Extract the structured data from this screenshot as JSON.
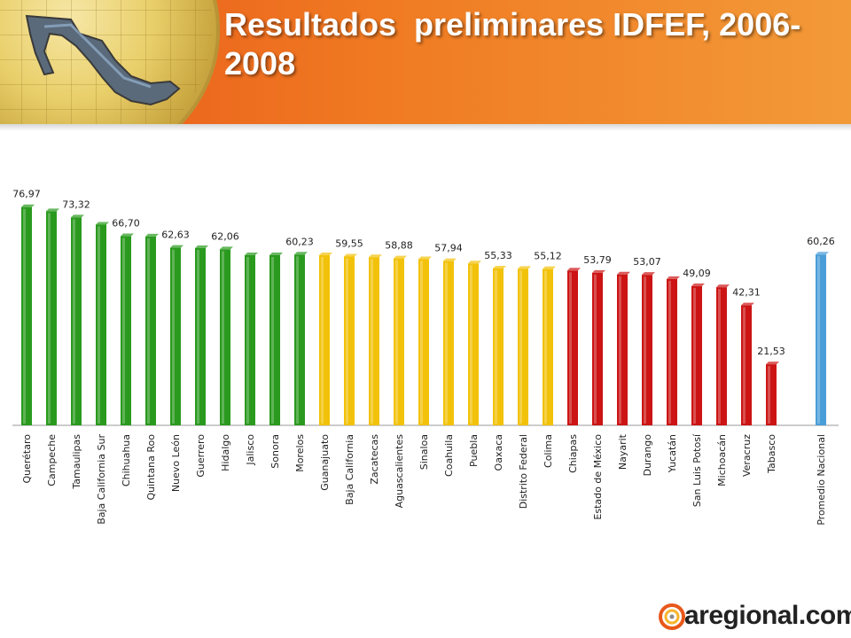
{
  "header": {
    "title": "Resultados  preliminares IDFEF, 2006-2008"
  },
  "brand": {
    "name": "aregional.com",
    "colors": [
      "#e8581a",
      "#f7b42c",
      "#8a8a8a"
    ]
  },
  "chart_data": {
    "type": "bar",
    "title": "",
    "xlabel": "",
    "ylabel": "",
    "ylim": [
      0,
      85
    ],
    "grid": false,
    "categories": [
      "Querétaro",
      "Campeche",
      "Tamaulipas",
      "Baja California Sur",
      "Chihuahua",
      "Quintana Roo",
      "Nuevo León",
      "Guerrero",
      "Hidalgo",
      "Jalisco",
      "Sonora",
      "Morelos",
      "Guanajuato",
      "Baja California",
      "Zacatecas",
      "Aguascalientes",
      "Sinaloa",
      "Coahuila",
      "Puebla",
      "Oaxaca",
      "Distrito Federal",
      "Colima",
      "Chiapas",
      "Estado de México",
      "Nayarit",
      "Durango",
      "Yucatán",
      "San Luis Potosí",
      "Michoacán",
      "Veracruz",
      "Tabasco",
      "Promedio Nacional"
    ],
    "values": [
      76.97,
      75.5,
      73.32,
      70.8,
      66.7,
      66.6,
      62.63,
      62.5,
      62.06,
      60.0,
      60.0,
      60.23,
      60.0,
      59.55,
      59.3,
      58.88,
      58.6,
      57.94,
      57.1,
      55.33,
      55.2,
      55.12,
      54.6,
      53.79,
      53.2,
      53.07,
      51.6,
      49.09,
      48.7,
      42.31,
      21.53,
      60.26
    ],
    "labels": [
      "76,97",
      "",
      "73,32",
      "",
      "66,70",
      "",
      "62,63",
      "",
      "62,06",
      "",
      "",
      "60,23",
      "",
      "59,55",
      "",
      "58,88",
      "",
      "57,94",
      "",
      "55,33",
      "",
      "55,12",
      "",
      "53,79",
      "",
      "53,07",
      "",
      "49,09",
      "",
      "42,31",
      "21,53",
      "60,26"
    ],
    "groups": [
      "green",
      "green",
      "green",
      "green",
      "green",
      "green",
      "green",
      "green",
      "green",
      "green",
      "green",
      "green",
      "yellow",
      "yellow",
      "yellow",
      "yellow",
      "yellow",
      "yellow",
      "yellow",
      "yellow",
      "yellow",
      "yellow",
      "red",
      "red",
      "red",
      "red",
      "red",
      "red",
      "red",
      "red",
      "red",
      "blue"
    ],
    "colors": {
      "green": "#2a9a1e",
      "yellow": "#f2c20a",
      "red": "#cc1414",
      "blue": "#4a9ed8"
    }
  }
}
